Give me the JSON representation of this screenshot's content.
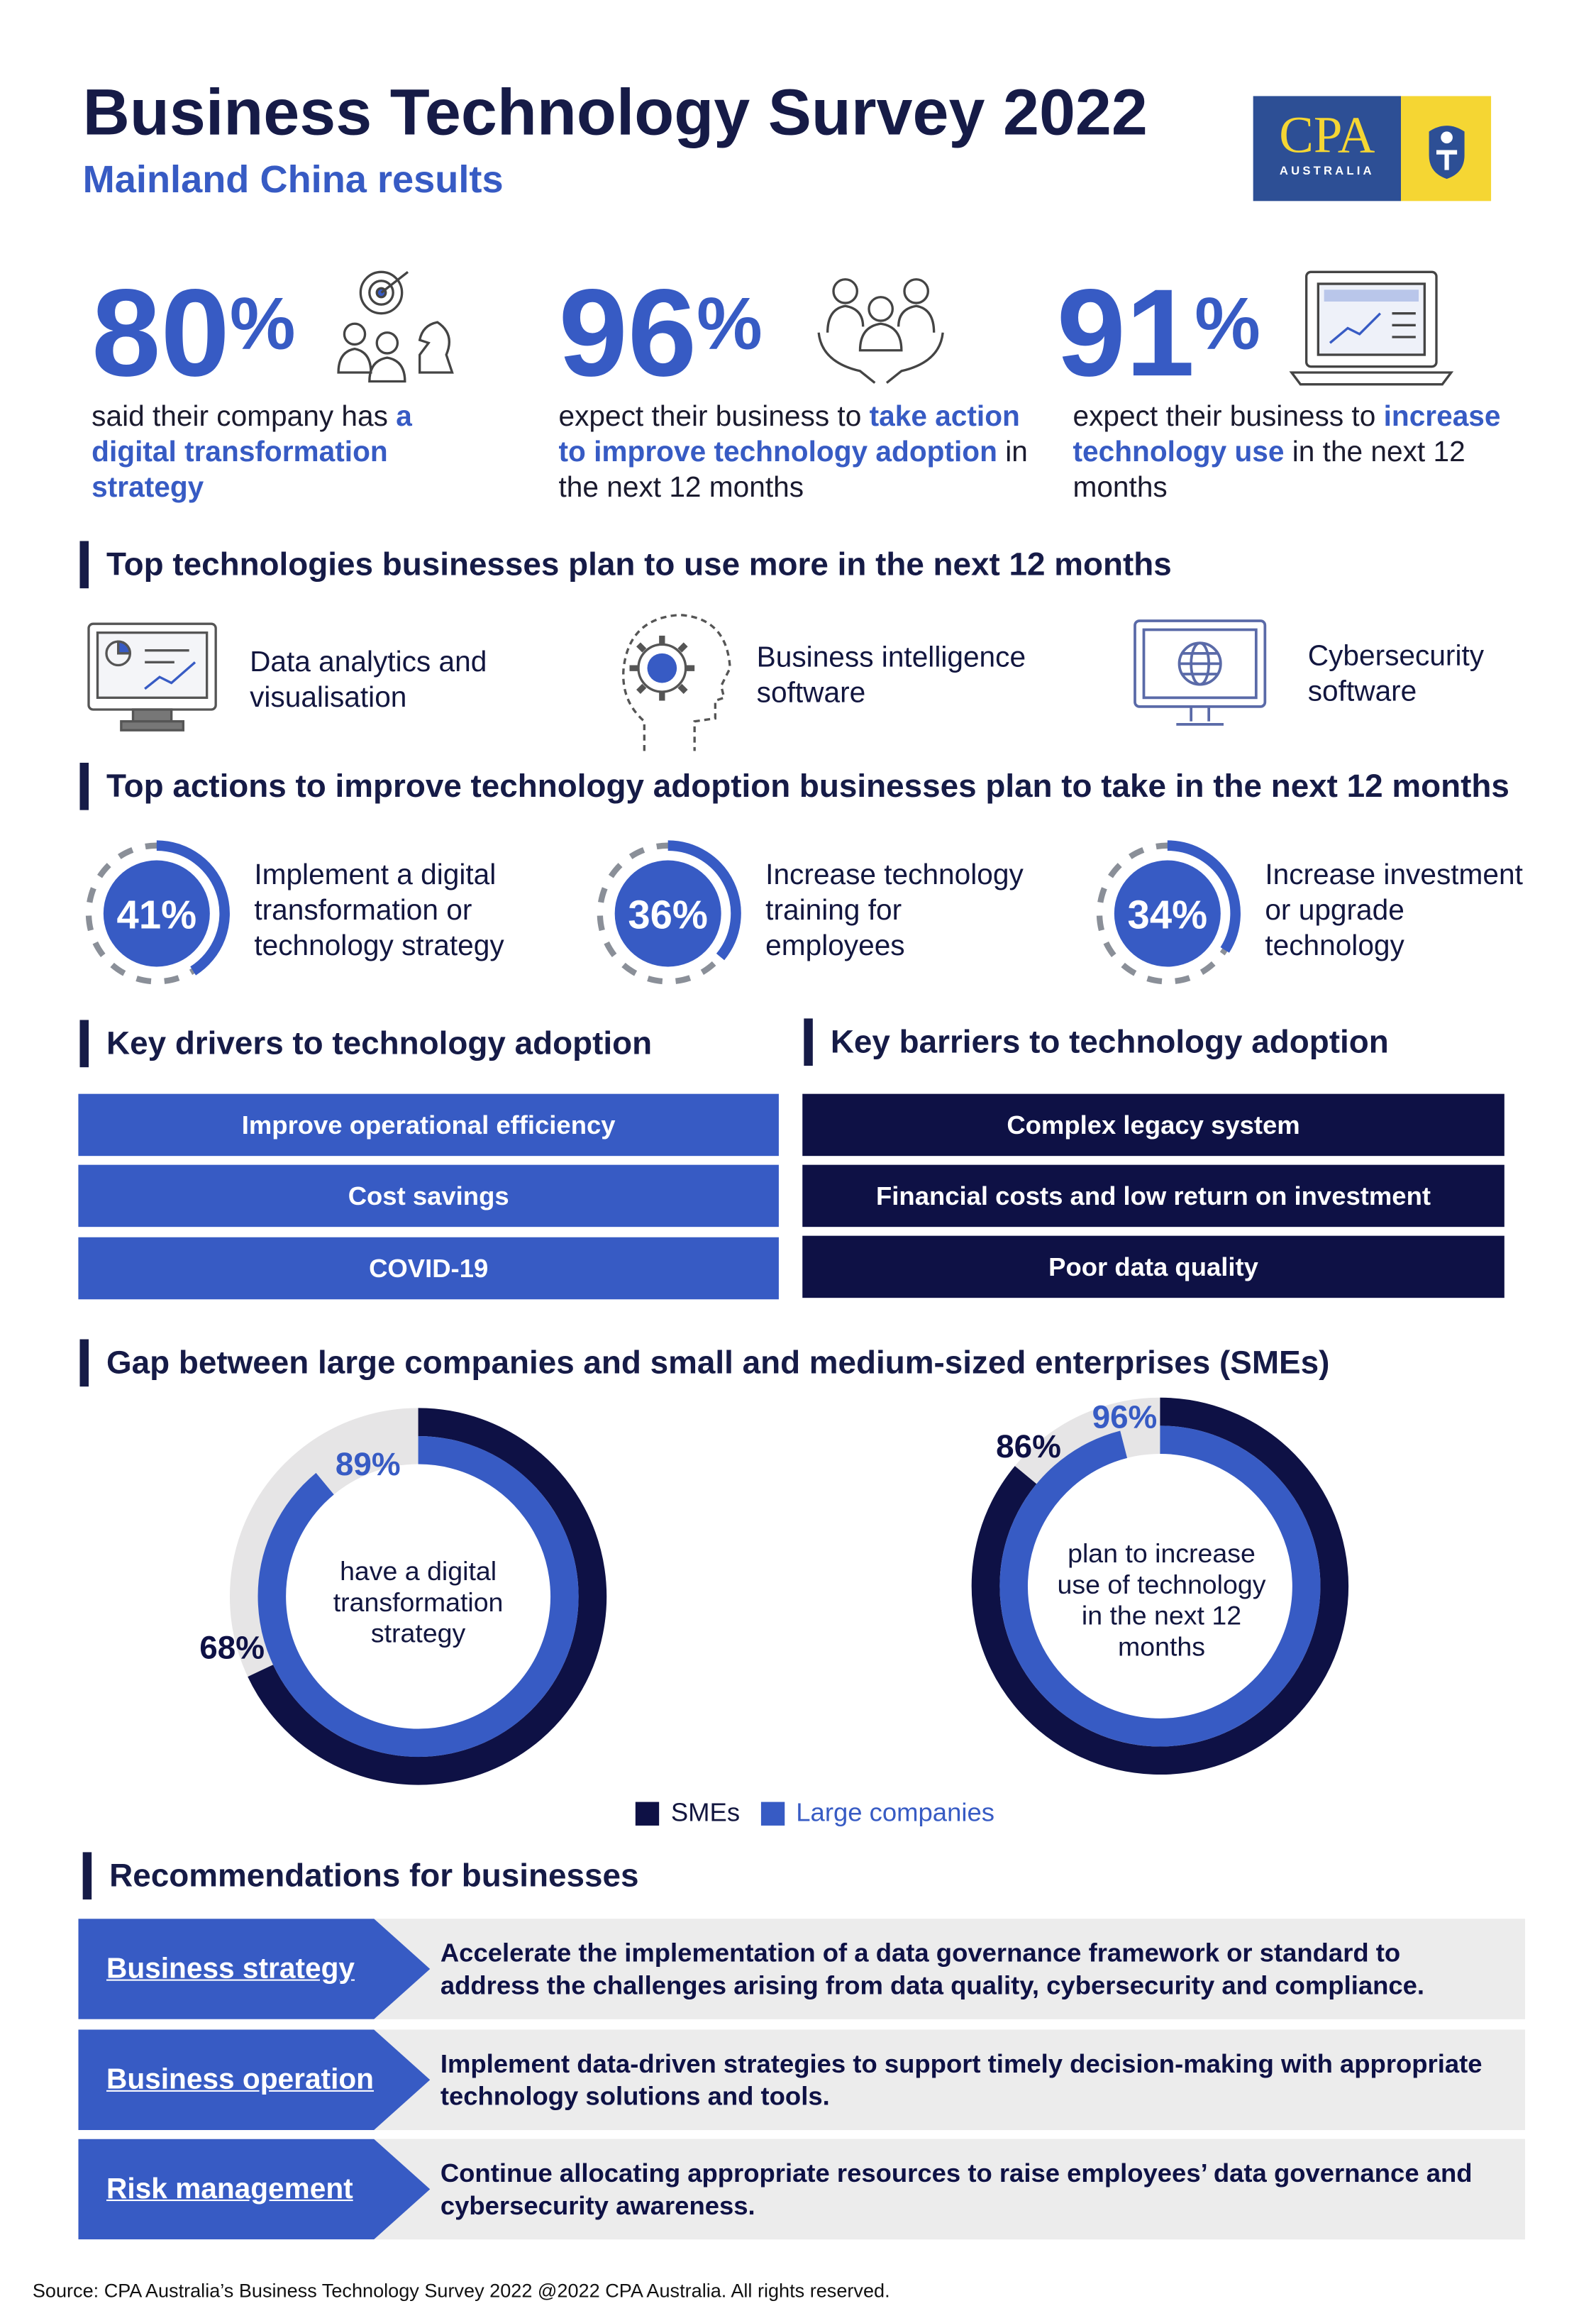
{
  "header": {
    "title": "Business Technology Survey 2022",
    "subtitle": "Mainland China results",
    "logo_text": "CPA",
    "logo_sub": "AUSTRALIA"
  },
  "colors": {
    "blue": "#375bc4",
    "navy": "#0e1145",
    "grey": "#e6e5e6",
    "yellow": "#f5d633"
  },
  "stats": [
    {
      "value": "80",
      "unit": "%",
      "pre": "said their company has ",
      "hl": "a digital transformation strategy",
      "post": "",
      "icon": "strategy-chess-icon"
    },
    {
      "value": "96",
      "unit": "%",
      "pre": "expect their business to ",
      "hl": "take action to improve technology adoption",
      "post": " in the next 12 months",
      "icon": "team-hands-icon"
    },
    {
      "value": "91",
      "unit": "%",
      "pre": "expect their business to ",
      "hl": "increase technology use",
      "post": " in the next 12 months",
      "icon": "laptop-chart-icon"
    }
  ],
  "tech_section": {
    "title": "Top technologies businesses plan to use more in the next 12 months",
    "items": [
      {
        "label": "Data analytics and visualisation",
        "icon": "analytics-monitor-icon"
      },
      {
        "label": "Business intelligence software",
        "icon": "head-gear-icon"
      },
      {
        "label": "Cybersecurity software",
        "icon": "globe-monitor-icon"
      }
    ]
  },
  "actions_section": {
    "title": "Top actions to improve technology adoption businesses plan to take in the next 12 months",
    "items": [
      {
        "pct": 41,
        "label": "41%",
        "text": "Implement a digital transformation or technology strategy"
      },
      {
        "pct": 36,
        "label": "36%",
        "text": "Increase technology training for employees"
      },
      {
        "pct": 34,
        "label": "34%",
        "text": "Increase investment or upgrade technology"
      }
    ]
  },
  "drivers": {
    "title": "Key drivers to technology adoption",
    "items": [
      "Improve operational efficiency",
      "Cost savings",
      "COVID-19"
    ]
  },
  "barriers": {
    "title": "Key barriers to technology adoption",
    "items": [
      "Complex legacy system",
      "Financial costs and low return on investment",
      "Poor data quality"
    ]
  },
  "gap": {
    "title": "Gap between large companies and small and medium-sized enterprises (SMEs)"
  },
  "chart_data": [
    {
      "type": "pie",
      "subtype": "nested-donut",
      "center_text": "have a digital transformation strategy",
      "series": [
        {
          "name": "SMEs",
          "value": 68,
          "label": "68%"
        },
        {
          "name": "Large companies",
          "value": 89,
          "label": "89%"
        }
      ]
    },
    {
      "type": "pie",
      "subtype": "nested-donut",
      "center_text": "plan to increase use of technology in the next 12 months",
      "series": [
        {
          "name": "SMEs",
          "value": 86,
          "label": "86%"
        },
        {
          "name": "Large companies",
          "value": 96,
          "label": "96%"
        }
      ]
    }
  ],
  "legend": {
    "smes": "SMEs",
    "large": "Large companies"
  },
  "recommendations": {
    "title": "Recommendations for businesses",
    "items": [
      {
        "label": "Business strategy",
        "text": "Accelerate the implementation of a data governance framework or standard to address the challenges arising from data quality, cybersecurity and compliance."
      },
      {
        "label": "Business operation",
        "text": "Implement data-driven strategies to support timely decision-making with appropriate technology solutions and tools."
      },
      {
        "label": "Risk management",
        "text": "Continue allocating appropriate resources to raise employees’ data governance and cybersecurity awareness."
      }
    ]
  },
  "footer": {
    "source": "Source: CPA Australia’s Business Technology Survey 2022 @2022 CPA Australia. All rights reserved."
  }
}
